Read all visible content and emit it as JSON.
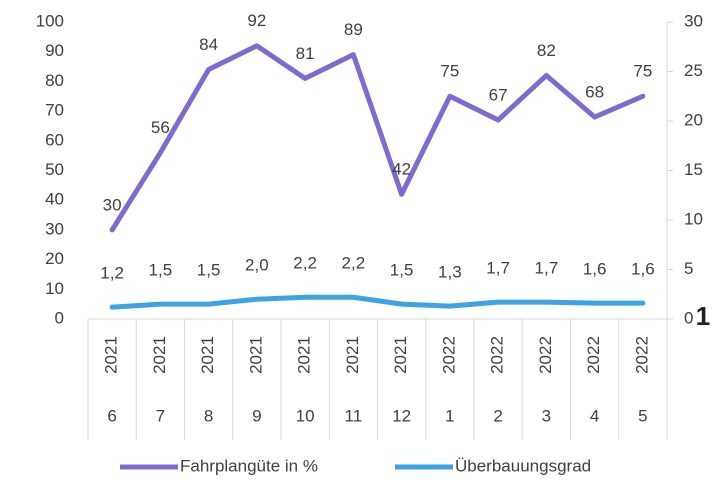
{
  "chart_data": {
    "type": "line",
    "categories": [
      "6",
      "7",
      "8",
      "9",
      "10",
      "11",
      "12",
      "1",
      "2",
      "3",
      "4",
      "5"
    ],
    "years": [
      "2021",
      "2021",
      "2021",
      "2021",
      "2021",
      "2021",
      "2021",
      "2022",
      "2022",
      "2022",
      "2022",
      "2022"
    ],
    "series": [
      {
        "name": "Fahrplangüte in %",
        "color": "#7f6bcf",
        "values": [
          30,
          56,
          84,
          92,
          81,
          89,
          42,
          75,
          67,
          82,
          68,
          75
        ]
      },
      {
        "name": "Überbauungsgrad",
        "color": "#3ea3e2",
        "axis": "y2",
        "values": [
          1.2,
          1.5,
          1.5,
          2.0,
          2.2,
          2.2,
          1.5,
          1.3,
          1.7,
          1.7,
          1.6,
          1.6
        ],
        "value_labels": [
          "1,2",
          "1,5",
          "1,5",
          "2,0",
          "2,2",
          "2,2",
          "1,5",
          "1,3",
          "1,7",
          "1,7",
          "1,6",
          "1,6"
        ]
      }
    ],
    "ylim": [
      0,
      100
    ],
    "yticks": [
      0,
      10,
      20,
      30,
      40,
      50,
      60,
      70,
      80,
      90,
      100
    ],
    "y2lim": [
      0,
      30
    ],
    "y2ticks": [
      0,
      5,
      10,
      15,
      20,
      25,
      30
    ],
    "annotation": "1",
    "legend": "bottom"
  }
}
